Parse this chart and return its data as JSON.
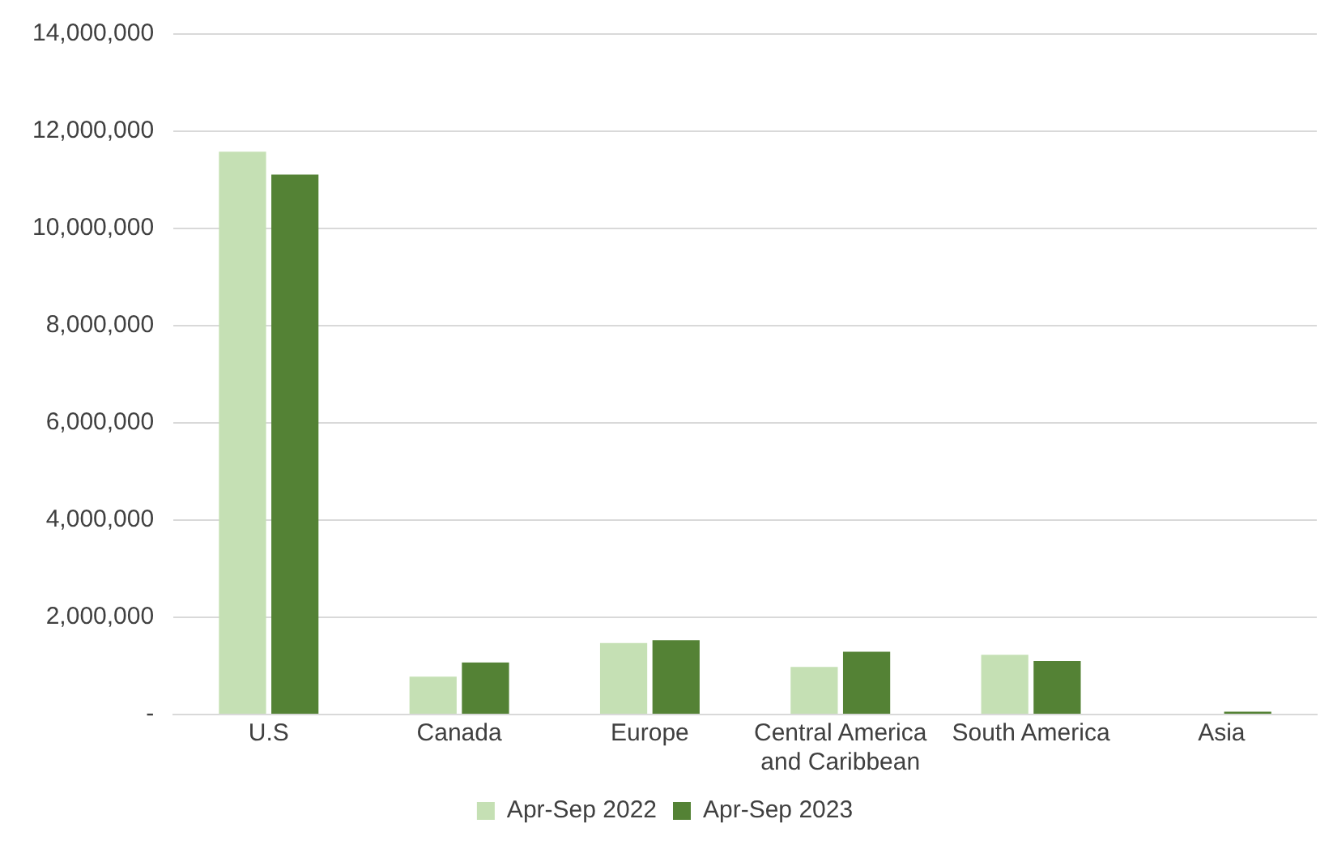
{
  "chart_data": {
    "type": "bar",
    "categories": [
      "U.S",
      "Canada",
      "Europe",
      "Central America and Caribbean",
      "South America",
      "Asia"
    ],
    "series": [
      {
        "name": "Apr-Sep 2022",
        "color": "#c5e0b4",
        "values": [
          11580000,
          780000,
          1470000,
          980000,
          1230000,
          null
        ]
      },
      {
        "name": "Apr-Sep 2023",
        "color": "#548235",
        "values": [
          11110000,
          1070000,
          1530000,
          1290000,
          1100000,
          60000
        ]
      }
    ],
    "ylim": [
      0,
      14000000
    ],
    "yticks": [
      {
        "value": 0,
        "label": "-"
      },
      {
        "value": 2000000,
        "label": "2,000,000"
      },
      {
        "value": 4000000,
        "label": "4,000,000"
      },
      {
        "value": 6000000,
        "label": "6,000,000"
      },
      {
        "value": 8000000,
        "label": "8,000,000"
      },
      {
        "value": 10000000,
        "label": "10,000,000"
      },
      {
        "value": 12000000,
        "label": "12,000,000"
      },
      {
        "value": 14000000,
        "label": "14,000,000"
      }
    ],
    "grid": "y",
    "legend": "bottom"
  }
}
